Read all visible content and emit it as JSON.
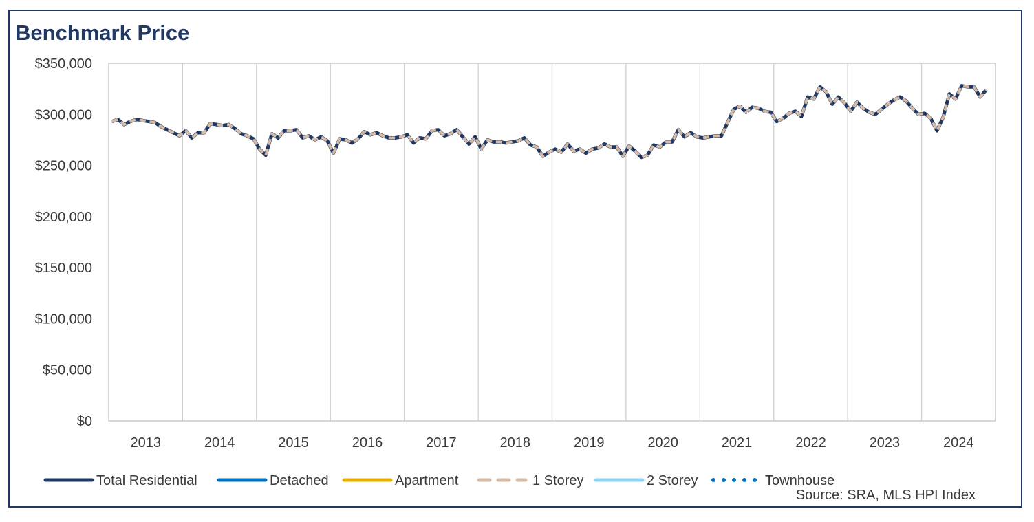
{
  "chart_data": {
    "type": "line",
    "title": "Benchmark Price",
    "source": "Source: SRA, MLS HPI Index",
    "ylim": [
      0,
      350000
    ],
    "yticks": [
      "$0",
      "$50,000",
      "$100,000",
      "$150,000",
      "$200,000",
      "$250,000",
      "$300,000",
      "$350,000"
    ],
    "ytick_values": [
      0,
      50000,
      100000,
      150000,
      200000,
      250000,
      300000,
      350000
    ],
    "year_labels": [
      "2013",
      "2014",
      "2015",
      "2016",
      "2017",
      "2018",
      "2019",
      "2020",
      "2021",
      "2022",
      "2023",
      "2024"
    ],
    "x_start": "2013-01",
    "grid": "vertical lines at year boundaries",
    "legend_position": "bottom",
    "series": [
      {
        "name": "Total Residential",
        "color": "#1f3864",
        "style": "solid"
      },
      {
        "name": "Detached",
        "color": "#0070c0",
        "style": "solid"
      },
      {
        "name": "Apartment",
        "color": "#e6b000",
        "style": "solid"
      },
      {
        "name": "1 Storey",
        "color": "#d5bba6",
        "style": "dashed"
      },
      {
        "name": "2 Storey",
        "color": "#8fd3f4",
        "style": "solid"
      },
      {
        "name": "Townhouse",
        "color": "#0070c0",
        "style": "dotted"
      }
    ],
    "values": [
      293000,
      295000,
      290000,
      293000,
      295000,
      294000,
      293000,
      292000,
      288000,
      285000,
      282000,
      279000,
      284000,
      277000,
      282000,
      282000,
      291000,
      290000,
      289000,
      290000,
      286000,
      281000,
      279000,
      276000,
      266000,
      260000,
      281000,
      277000,
      284000,
      284000,
      285000,
      277000,
      279000,
      275000,
      278000,
      274000,
      262000,
      276000,
      275000,
      272000,
      276000,
      283000,
      280000,
      282000,
      279000,
      277000,
      277000,
      278000,
      280000,
      272000,
      277000,
      276000,
      284000,
      285000,
      279000,
      281000,
      285000,
      278000,
      271000,
      278000,
      266000,
      275000,
      273000,
      273000,
      272000,
      273000,
      274000,
      277000,
      270000,
      268000,
      259000,
      263000,
      266000,
      263000,
      271000,
      264000,
      266000,
      262000,
      266000,
      267000,
      271000,
      268000,
      268000,
      259000,
      269000,
      264000,
      258000,
      260000,
      270000,
      268000,
      273000,
      273000,
      285000,
      278000,
      282000,
      278000,
      277000,
      278000,
      279000,
      279000,
      292000,
      305000,
      308000,
      302000,
      307000,
      306000,
      303000,
      302000,
      293000,
      296000,
      301000,
      303000,
      298000,
      317000,
      315000,
      327000,
      322000,
      310000,
      317000,
      311000,
      303000,
      312000,
      306000,
      302000,
      300000,
      305000,
      310000,
      314000,
      317000,
      313000,
      306000,
      300000,
      301000,
      296000,
      284000,
      297000,
      320000,
      315000,
      328000,
      327000,
      327000,
      317000,
      324000
    ]
  }
}
